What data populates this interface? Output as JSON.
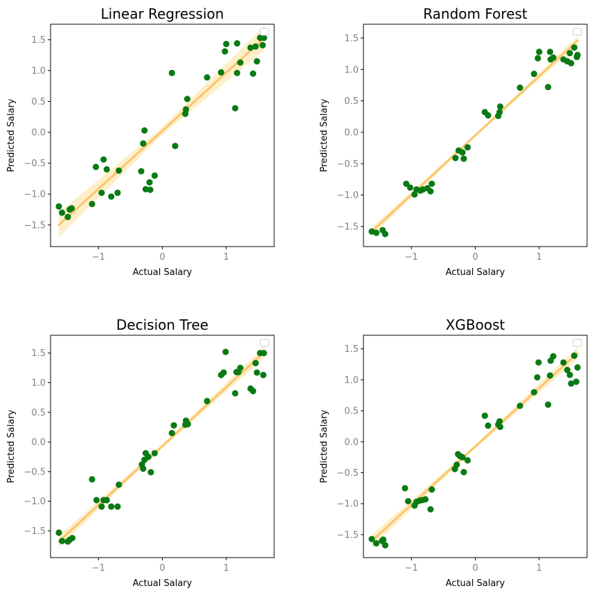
{
  "colors": {
    "points": "#0a7a14",
    "fit_line": "#fbc56a",
    "ci_band": "#fde8b8",
    "axes": "#000000",
    "tick_labels": "#808080"
  },
  "chart_data": [
    {
      "type": "scatter",
      "title": "Linear Regression",
      "xlabel": "Actual Salary",
      "ylabel": "Predicted Salary",
      "xlim": [
        -1.75,
        1.75
      ],
      "ylim": [
        -1.85,
        1.75
      ],
      "xticks": [
        -1,
        0,
        1
      ],
      "xtick_labels": [
        "−1",
        "0",
        "1"
      ],
      "yticks": [
        -1.5,
        -1.0,
        -0.5,
        0.0,
        0.5,
        1.0,
        1.5
      ],
      "ytick_labels": [
        "−1.5",
        "−1.0",
        "−0.5",
        "0.0",
        "0.5",
        "1.0",
        "1.5"
      ],
      "legend": "upper right, empty",
      "regression": {
        "x": [
          -1.62,
          1.6
        ],
        "y": [
          -1.5,
          1.53
        ],
        "ci_halfwidth": [
          0.2,
          0.06,
          0.2
        ]
      },
      "points": [
        [
          -1.62,
          -1.2
        ],
        [
          -1.57,
          -1.3
        ],
        [
          -1.48,
          -1.37
        ],
        [
          -1.45,
          -1.25
        ],
        [
          -1.42,
          -1.23
        ],
        [
          -1.1,
          -1.16
        ],
        [
          -1.04,
          -0.56
        ],
        [
          -0.95,
          -0.98
        ],
        [
          -0.92,
          -0.44
        ],
        [
          -0.87,
          -0.6
        ],
        [
          -0.8,
          -1.04
        ],
        [
          -0.7,
          -0.98
        ],
        [
          -0.68,
          -0.62
        ],
        [
          -0.33,
          -0.63
        ],
        [
          -0.3,
          -0.18
        ],
        [
          -0.28,
          0.03
        ],
        [
          -0.26,
          -0.92
        ],
        [
          -0.19,
          -0.93
        ],
        [
          -0.2,
          -0.81
        ],
        [
          -0.12,
          -0.7
        ],
        [
          0.15,
          0.96
        ],
        [
          0.2,
          -0.22
        ],
        [
          0.36,
          0.3
        ],
        [
          0.37,
          0.37
        ],
        [
          0.39,
          0.54
        ],
        [
          0.7,
          0.89
        ],
        [
          0.92,
          0.97
        ],
        [
          0.98,
          1.31
        ],
        [
          1.0,
          1.43
        ],
        [
          1.14,
          0.39
        ],
        [
          1.17,
          0.96
        ],
        [
          1.17,
          1.44
        ],
        [
          1.22,
          1.13
        ],
        [
          1.38,
          1.37
        ],
        [
          1.42,
          0.95
        ],
        [
          1.46,
          1.39
        ],
        [
          1.48,
          1.15
        ],
        [
          1.53,
          1.53
        ],
        [
          1.57,
          1.41
        ],
        [
          1.59,
          1.53
        ]
      ]
    },
    {
      "type": "scatter",
      "title": "Random Forest",
      "xlabel": "Actual Salary",
      "ylabel": "Predicted Salary",
      "xlim": [
        -1.75,
        1.75
      ],
      "ylim": [
        -1.82,
        1.72
      ],
      "xticks": [
        -1,
        0,
        1
      ],
      "xtick_labels": [
        "−1",
        "0",
        "1"
      ],
      "yticks": [
        -1.5,
        -1.0,
        -0.5,
        0.0,
        0.5,
        1.0,
        1.5
      ],
      "ytick_labels": [
        "−1.5",
        "−1.0",
        "−0.5",
        "0.0",
        "0.5",
        "1.0",
        "1.5"
      ],
      "legend": "upper right, empty",
      "regression": {
        "x": [
          -1.62,
          1.6
        ],
        "y": [
          -1.58,
          1.46
        ],
        "ci_halfwidth": [
          0.07,
          0.02,
          0.07
        ]
      },
      "points": [
        [
          -1.62,
          -1.58
        ],
        [
          -1.55,
          -1.6
        ],
        [
          -1.45,
          -1.56
        ],
        [
          -1.41,
          -1.62
        ],
        [
          -1.08,
          -0.82
        ],
        [
          -1.02,
          -0.88
        ],
        [
          -0.95,
          -0.99
        ],
        [
          -0.92,
          -0.91
        ],
        [
          -0.86,
          -0.93
        ],
        [
          -0.82,
          -0.91
        ],
        [
          -0.75,
          -0.89
        ],
        [
          -0.7,
          -0.94
        ],
        [
          -0.68,
          -0.82
        ],
        [
          -0.31,
          -0.41
        ],
        [
          -0.26,
          -0.29
        ],
        [
          -0.2,
          -0.32
        ],
        [
          -0.18,
          -0.42
        ],
        [
          -0.12,
          -0.24
        ],
        [
          0.15,
          0.32
        ],
        [
          0.2,
          0.27
        ],
        [
          0.36,
          0.26
        ],
        [
          0.38,
          0.32
        ],
        [
          0.39,
          0.41
        ],
        [
          0.7,
          0.71
        ],
        [
          0.92,
          0.93
        ],
        [
          0.98,
          1.18
        ],
        [
          1.0,
          1.28
        ],
        [
          1.14,
          0.72
        ],
        [
          1.17,
          1.28
        ],
        [
          1.18,
          1.16
        ],
        [
          1.22,
          1.19
        ],
        [
          1.38,
          1.16
        ],
        [
          1.44,
          1.13
        ],
        [
          1.48,
          1.26
        ],
        [
          1.5,
          1.1
        ],
        [
          1.55,
          1.35
        ],
        [
          1.59,
          1.2
        ],
        [
          1.6,
          1.23
        ]
      ]
    },
    {
      "type": "scatter",
      "title": "Decision Tree",
      "xlabel": "Actual Salary",
      "ylabel": "Predicted Salary",
      "xlim": [
        -1.75,
        1.75
      ],
      "ylim": [
        -1.95,
        1.8
      ],
      "xticks": [
        -1,
        0,
        1
      ],
      "xtick_labels": [
        "−1",
        "0",
        "1"
      ],
      "yticks": [
        -1.5,
        -1.0,
        -0.5,
        0.0,
        0.5,
        1.0,
        1.5
      ],
      "ytick_labels": [
        "−1.5",
        "−1.0",
        "−0.5",
        "0.0",
        "0.5",
        "1.0",
        "1.5"
      ],
      "legend": "upper right, empty",
      "regression": {
        "x": [
          -1.62,
          1.6
        ],
        "y": [
          -1.68,
          1.52
        ],
        "ci_halfwidth": [
          0.1,
          0.03,
          0.1
        ]
      },
      "points": [
        [
          -1.62,
          -1.53
        ],
        [
          -1.57,
          -1.67
        ],
        [
          -1.48,
          -1.68
        ],
        [
          -1.45,
          -1.65
        ],
        [
          -1.41,
          -1.62
        ],
        [
          -1.1,
          -0.63
        ],
        [
          -1.03,
          -0.98
        ],
        [
          -0.95,
          -1.09
        ],
        [
          -0.92,
          -0.98
        ],
        [
          -0.87,
          -0.98
        ],
        [
          -0.8,
          -1.09
        ],
        [
          -0.7,
          -1.09
        ],
        [
          -0.68,
          -0.72
        ],
        [
          -0.32,
          -0.38
        ],
        [
          -0.3,
          -0.45
        ],
        [
          -0.28,
          -0.3
        ],
        [
          -0.26,
          -0.19
        ],
        [
          -0.22,
          -0.25
        ],
        [
          -0.18,
          -0.51
        ],
        [
          -0.12,
          -0.19
        ],
        [
          0.15,
          0.15
        ],
        [
          0.18,
          0.28
        ],
        [
          0.36,
          0.29
        ],
        [
          0.37,
          0.36
        ],
        [
          0.4,
          0.3
        ],
        [
          0.7,
          0.69
        ],
        [
          0.92,
          1.13
        ],
        [
          0.96,
          1.17
        ],
        [
          0.99,
          1.52
        ],
        [
          1.14,
          0.82
        ],
        [
          1.16,
          1.18
        ],
        [
          1.19,
          1.18
        ],
        [
          1.22,
          1.25
        ],
        [
          1.38,
          0.9
        ],
        [
          1.42,
          0.86
        ],
        [
          1.46,
          1.33
        ],
        [
          1.48,
          1.17
        ],
        [
          1.53,
          1.5
        ],
        [
          1.58,
          1.13
        ],
        [
          1.59,
          1.5
        ]
      ]
    },
    {
      "type": "scatter",
      "title": "XGBoost",
      "xlabel": "Actual Salary",
      "ylabel": "Predicted Salary",
      "xlim": [
        -1.75,
        1.75
      ],
      "ylim": [
        -1.87,
        1.72
      ],
      "xticks": [
        -1,
        0,
        1
      ],
      "xtick_labels": [
        "−1",
        "0",
        "1"
      ],
      "yticks": [
        -1.5,
        -1.0,
        -0.5,
        0.0,
        0.5,
        1.0,
        1.5
      ],
      "ytick_labels": [
        "−1.5",
        "−1.0",
        "−0.5",
        "0.0",
        "0.5",
        "1.0",
        "1.5"
      ],
      "legend": "upper right, empty",
      "regression": {
        "x": [
          -1.62,
          1.6
        ],
        "y": [
          -1.6,
          1.43
        ],
        "ci_halfwidth": [
          0.1,
          0.03,
          0.1
        ]
      },
      "points": [
        [
          -1.62,
          -1.57
        ],
        [
          -1.55,
          -1.64
        ],
        [
          -1.46,
          -1.6
        ],
        [
          -1.44,
          -1.58
        ],
        [
          -1.41,
          -1.67
        ],
        [
          -1.1,
          -0.75
        ],
        [
          -1.05,
          -0.96
        ],
        [
          -0.95,
          -1.03
        ],
        [
          -0.92,
          -0.97
        ],
        [
          -0.87,
          -0.95
        ],
        [
          -0.82,
          -0.94
        ],
        [
          -0.78,
          -0.93
        ],
        [
          -0.7,
          -1.09
        ],
        [
          -0.68,
          -0.77
        ],
        [
          -0.32,
          -0.44
        ],
        [
          -0.29,
          -0.37
        ],
        [
          -0.27,
          -0.2
        ],
        [
          -0.24,
          -0.23
        ],
        [
          -0.2,
          -0.25
        ],
        [
          -0.18,
          -0.49
        ],
        [
          -0.12,
          -0.3
        ],
        [
          0.15,
          0.42
        ],
        [
          0.2,
          0.26
        ],
        [
          0.36,
          0.28
        ],
        [
          0.38,
          0.33
        ],
        [
          0.39,
          0.24
        ],
        [
          0.7,
          0.58
        ],
        [
          0.92,
          0.8
        ],
        [
          0.97,
          1.04
        ],
        [
          0.99,
          1.28
        ],
        [
          1.14,
          0.6
        ],
        [
          1.17,
          1.07
        ],
        [
          1.18,
          1.31
        ],
        [
          1.22,
          1.38
        ],
        [
          1.38,
          1.28
        ],
        [
          1.44,
          1.16
        ],
        [
          1.48,
          1.08
        ],
        [
          1.5,
          0.94
        ],
        [
          1.55,
          1.39
        ],
        [
          1.58,
          0.97
        ],
        [
          1.6,
          1.2
        ]
      ]
    }
  ]
}
